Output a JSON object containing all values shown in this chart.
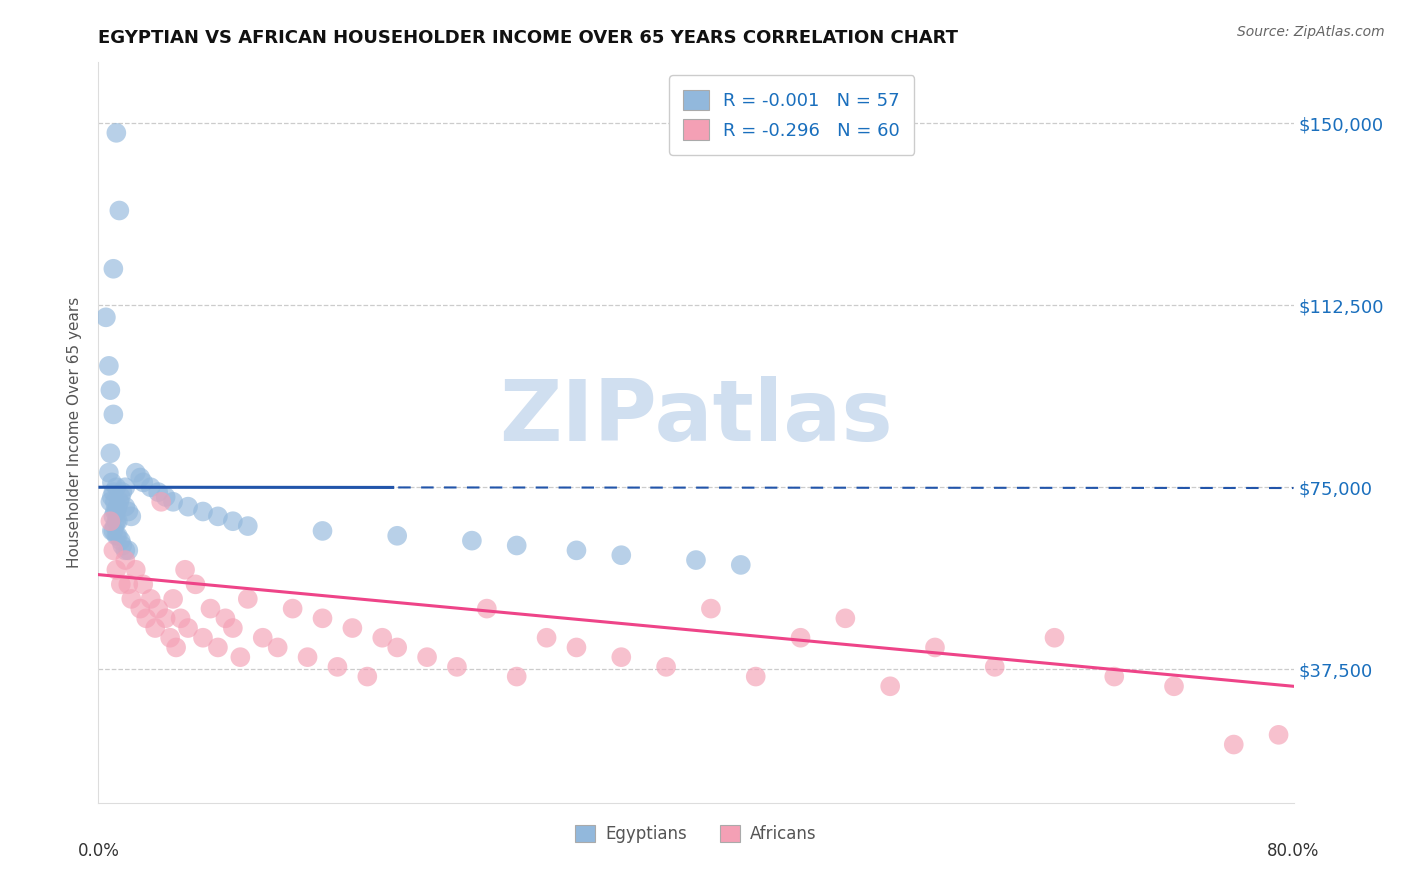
{
  "title": "EGYPTIAN VS AFRICAN HOUSEHOLDER INCOME OVER 65 YEARS CORRELATION CHART",
  "source": "Source: ZipAtlas.com",
  "ylabel": "Householder Income Over 65 years",
  "xlim": [
    0.0,
    0.8
  ],
  "ylim": [
    10000,
    162500
  ],
  "yticks": [
    37500,
    75000,
    112500,
    150000
  ],
  "ytick_labels": [
    "$37,500",
    "$75,000",
    "$112,500",
    "$150,000"
  ],
  "egyptian_color": "#92b8dc",
  "african_color": "#f4a0b5",
  "egyptian_line_color": "#2255aa",
  "african_line_color": "#ee4488",
  "watermark": "ZIPatlas",
  "watermark_color": "#d0dff0",
  "legend_label_1": "R = -0.001   N = 57",
  "legend_label_2": "R = -0.296   N = 60",
  "bottom_legend_1": "Egyptians",
  "bottom_legend_2": "Africans",
  "egyptian_x": [
    0.012,
    0.014,
    0.01,
    0.005,
    0.007,
    0.008,
    0.01,
    0.008,
    0.007,
    0.009,
    0.012,
    0.01,
    0.009,
    0.008,
    0.011,
    0.013,
    0.012,
    0.011,
    0.01,
    0.012,
    0.013,
    0.011,
    0.009,
    0.01,
    0.012,
    0.013,
    0.015,
    0.016,
    0.018,
    0.02,
    0.018,
    0.016,
    0.015,
    0.014,
    0.018,
    0.02,
    0.022,
    0.025,
    0.028,
    0.03,
    0.035,
    0.04,
    0.045,
    0.05,
    0.06,
    0.07,
    0.08,
    0.09,
    0.1,
    0.15,
    0.2,
    0.25,
    0.28,
    0.32,
    0.35,
    0.4,
    0.43
  ],
  "egyptian_y": [
    148000,
    132000,
    120000,
    110000,
    100000,
    95000,
    90000,
    82000,
    78000,
    76000,
    75000,
    74000,
    73000,
    72000,
    72000,
    71000,
    70000,
    70000,
    69000,
    68000,
    68000,
    67000,
    66000,
    66000,
    65000,
    65000,
    64000,
    63000,
    62000,
    62000,
    75000,
    74000,
    73000,
    72000,
    71000,
    70000,
    69000,
    78000,
    77000,
    76000,
    75000,
    74000,
    73000,
    72000,
    71000,
    70000,
    69000,
    68000,
    67000,
    66000,
    65000,
    64000,
    63000,
    62000,
    61000,
    60000,
    59000
  ],
  "african_x": [
    0.008,
    0.01,
    0.012,
    0.015,
    0.018,
    0.02,
    0.022,
    0.025,
    0.028,
    0.03,
    0.032,
    0.035,
    0.038,
    0.04,
    0.042,
    0.045,
    0.048,
    0.05,
    0.052,
    0.055,
    0.058,
    0.06,
    0.065,
    0.07,
    0.075,
    0.08,
    0.085,
    0.09,
    0.095,
    0.1,
    0.11,
    0.12,
    0.13,
    0.14,
    0.15,
    0.16,
    0.17,
    0.18,
    0.19,
    0.2,
    0.22,
    0.24,
    0.26,
    0.28,
    0.3,
    0.32,
    0.35,
    0.38,
    0.41,
    0.44,
    0.47,
    0.5,
    0.53,
    0.56,
    0.6,
    0.64,
    0.68,
    0.72,
    0.76,
    0.79
  ],
  "african_y": [
    68000,
    62000,
    58000,
    55000,
    60000,
    55000,
    52000,
    58000,
    50000,
    55000,
    48000,
    52000,
    46000,
    50000,
    72000,
    48000,
    44000,
    52000,
    42000,
    48000,
    58000,
    46000,
    55000,
    44000,
    50000,
    42000,
    48000,
    46000,
    40000,
    52000,
    44000,
    42000,
    50000,
    40000,
    48000,
    38000,
    46000,
    36000,
    44000,
    42000,
    40000,
    38000,
    50000,
    36000,
    44000,
    42000,
    40000,
    38000,
    50000,
    36000,
    44000,
    48000,
    34000,
    42000,
    38000,
    44000,
    36000,
    34000,
    22000,
    24000
  ]
}
